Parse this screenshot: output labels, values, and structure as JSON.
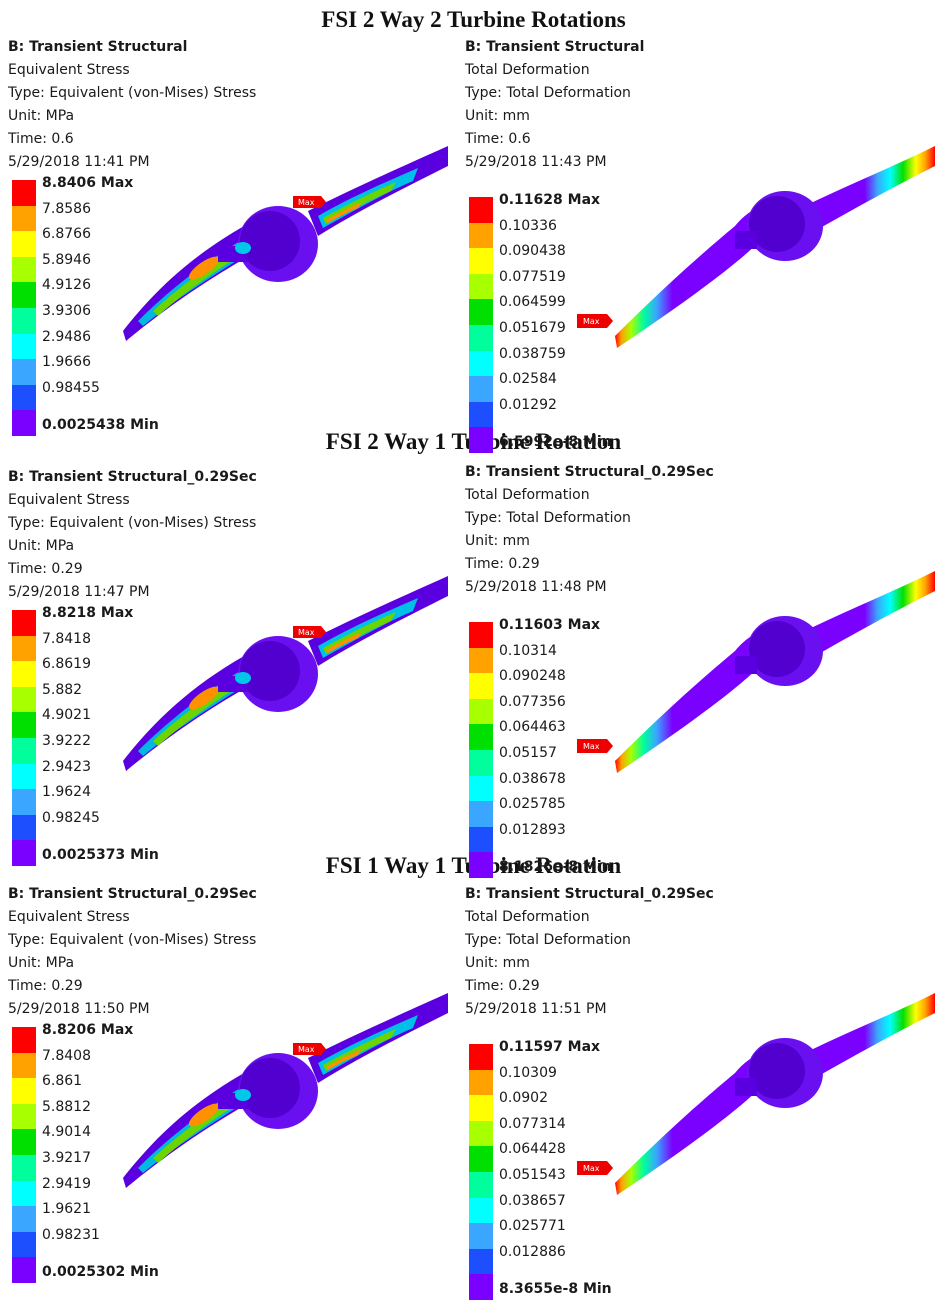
{
  "titles": {
    "t1": "FSI 2 Way 2 Turbine Rotations",
    "t2": "FSI 2 Way 1 Turbine Rotation",
    "t3": "FSI 1 Way 1 Turbine Rotation"
  },
  "legend_colors": [
    "#ff0000",
    "#ffa200",
    "#ffff00",
    "#a8ff00",
    "#00e000",
    "#00ff9c",
    "#00ffff",
    "#3aa6ff",
    "#1d4fff",
    "#7a00ff"
  ],
  "panels": [
    {
      "header": [
        "B: Transient Structural",
        "Equivalent Stress",
        "Type: Equivalent (von-Mises) Stress",
        "Unit: MPa",
        "Time: 0.6",
        "5/29/2018 11:41 PM"
      ],
      "labels": [
        "8.8406 Max",
        "7.8586",
        "6.8766",
        "5.8946",
        "4.9126",
        "3.9306",
        "2.9486",
        "1.9666",
        "0.98455",
        "0.0025438 Min"
      ],
      "marker": "Max"
    },
    {
      "header": [
        "B: Transient Structural",
        "Total Deformation",
        "Type: Total Deformation",
        "Unit: mm",
        "Time: 0.6",
        "5/29/2018 11:43 PM"
      ],
      "labels": [
        "0.11628 Max",
        "0.10336",
        "0.090438",
        "0.077519",
        "0.064599",
        "0.051679",
        "0.038759",
        "0.02584",
        "0.01292",
        "6.5992e-8 Min"
      ],
      "marker": "Max"
    },
    {
      "header": [
        "B: Transient Structural_0.29Sec",
        "Equivalent Stress",
        "Type: Equivalent (von-Mises) Stress",
        "Unit: MPa",
        "Time: 0.29",
        "5/29/2018 11:47 PM"
      ],
      "labels": [
        "8.8218 Max",
        "7.8418",
        "6.8619",
        "5.882",
        "4.9021",
        "3.9222",
        "2.9423",
        "1.9624",
        "0.98245",
        "0.0025373 Min"
      ],
      "marker": "Max"
    },
    {
      "header": [
        "B: Transient Structural_0.29Sec",
        "Total Deformation",
        "Type: Total Deformation",
        "Unit: mm",
        "Time: 0.29",
        "5/29/2018 11:48 PM"
      ],
      "labels": [
        "0.11603 Max",
        "0.10314",
        "0.090248",
        "0.077356",
        "0.064463",
        "0.05157",
        "0.038678",
        "0.025785",
        "0.012893",
        "8.1826e-8 Min"
      ],
      "marker": "Max"
    },
    {
      "header": [
        "B: Transient Structural_0.29Sec",
        "Equivalent Stress",
        "Type: Equivalent (von-Mises) Stress",
        "Unit: MPa",
        "Time: 0.29",
        "5/29/2018 11:50 PM"
      ],
      "labels": [
        "8.8206 Max",
        "7.8408",
        "6.861",
        "5.8812",
        "4.9014",
        "3.9217",
        "2.9419",
        "1.9621",
        "0.98231",
        "0.0025302 Min"
      ],
      "marker": "Max"
    },
    {
      "header": [
        "B: Transient Structural_0.29Sec",
        "Total Deformation",
        "Type: Total Deformation",
        "Unit: mm",
        "Time: 0.29",
        "5/29/2018 11:51 PM"
      ],
      "labels": [
        "0.11597 Max",
        "0.10309",
        "0.0902",
        "0.077314",
        "0.064428",
        "0.051543",
        "0.038657",
        "0.025771",
        "0.012886",
        "8.3655e-8 Min"
      ],
      "marker": "Max"
    }
  ]
}
